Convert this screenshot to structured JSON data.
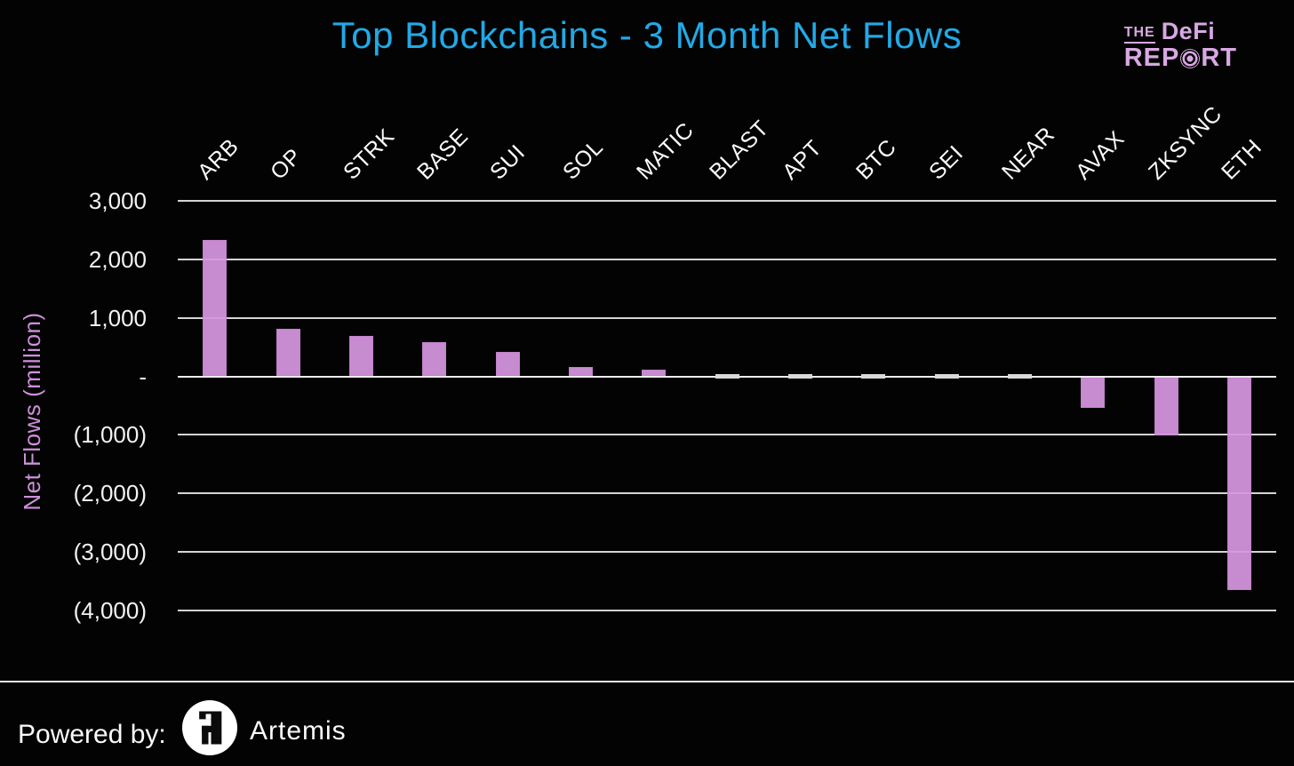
{
  "header": {
    "logo": {
      "the": "THE",
      "defi": "DeFi",
      "rep": "REP",
      "rt": "RT"
    }
  },
  "y_axis": {
    "label": "Net Flows (million)"
  },
  "footer": {
    "powered_by": "Powered by:",
    "brand": "Artemis"
  },
  "colors": {
    "background": "#030303",
    "title": "#22a9e6",
    "bar": "#c98bd0",
    "axis_label_pink": "#cd90da",
    "logo_pink": "#d8a8e4",
    "gridline": "#d4d4d4",
    "tick_text": "#f2f2f2"
  },
  "chart_data": {
    "type": "bar",
    "title": "Top Blockchains - 3 Month Net Flows",
    "categories": [
      "ARB",
      "OP",
      "STRK",
      "BASE",
      "SUI",
      "SOL",
      "MATIC",
      "BLAST",
      "APT",
      "BTC",
      "SEI",
      "NEAR",
      "AVAX",
      "ZKSYNC",
      "ETH"
    ],
    "values": [
      2330,
      810,
      690,
      580,
      425,
      160,
      120,
      -10,
      -10,
      -15,
      -15,
      -20,
      -525,
      -990,
      -3640
    ],
    "xlabel": "",
    "ylabel": "Net Flows (million)",
    "ylim": [
      -4000,
      3000
    ],
    "grid": true,
    "legend": false,
    "yticks": [
      {
        "value": 3000,
        "label": "3,000"
      },
      {
        "value": 2000,
        "label": "2,000"
      },
      {
        "value": 1000,
        "label": "1,000"
      },
      {
        "value": 0,
        "label": "-"
      },
      {
        "value": -1000,
        "label": "(1,000)"
      },
      {
        "value": -2000,
        "label": "(2,000)"
      },
      {
        "value": -3000,
        "label": "(3,000)"
      },
      {
        "value": -4000,
        "label": "(4,000)"
      }
    ]
  }
}
